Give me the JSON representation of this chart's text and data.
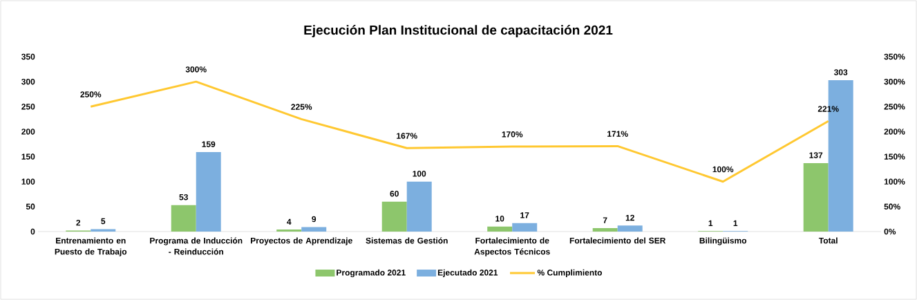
{
  "chart_data": {
    "type": "bar",
    "title": "Ejecución Plan Institucional de capacitación 2021",
    "categories": [
      "Entrenamiento en Puesto de Trabajo",
      "Programa de Inducción - Reinducción",
      "Proyectos de Aprendizaje",
      "Sistemas de Gestión",
      "Fortalecimiento de Aspectos Técnicos",
      "Fortalecimiento del SER",
      "Bilingüismo",
      "Total"
    ],
    "series": [
      {
        "name": "Programado 2021",
        "color": "#8dc66c",
        "values": [
          2,
          53,
          4,
          60,
          10,
          7,
          1,
          137
        ]
      },
      {
        "name": "Ejecutado 2021",
        "color": "#7cafdf",
        "values": [
          5,
          159,
          9,
          100,
          17,
          12,
          1,
          303
        ]
      },
      {
        "name": "% Cumplimiento",
        "type": "line",
        "axis": "y2",
        "color": "#ffc831",
        "values": [
          250,
          300,
          225,
          167,
          170,
          171,
          100,
          221
        ],
        "value_labels": [
          "250%",
          "300%",
          "225%",
          "167%",
          "170%",
          "171%",
          "100%",
          "221%"
        ]
      }
    ],
    "data_labels": true,
    "ylim": [
      0,
      350
    ],
    "yticks": [
      0,
      50,
      100,
      150,
      200,
      250,
      300,
      350
    ],
    "y2lim": [
      0,
      350
    ],
    "y2ticks": [
      {
        "value": 0,
        "label": "0%"
      },
      {
        "value": 50,
        "label": "50%"
      },
      {
        "value": 100,
        "label": "100%"
      },
      {
        "value": 150,
        "label": "150%"
      },
      {
        "value": 200,
        "label": "200%"
      },
      {
        "value": 250,
        "label": "250%"
      },
      {
        "value": 300,
        "label": "300%"
      },
      {
        "value": 350,
        "label": "350%"
      }
    ],
    "legend": "bottom",
    "marker": "none",
    "line_style": "solid"
  }
}
